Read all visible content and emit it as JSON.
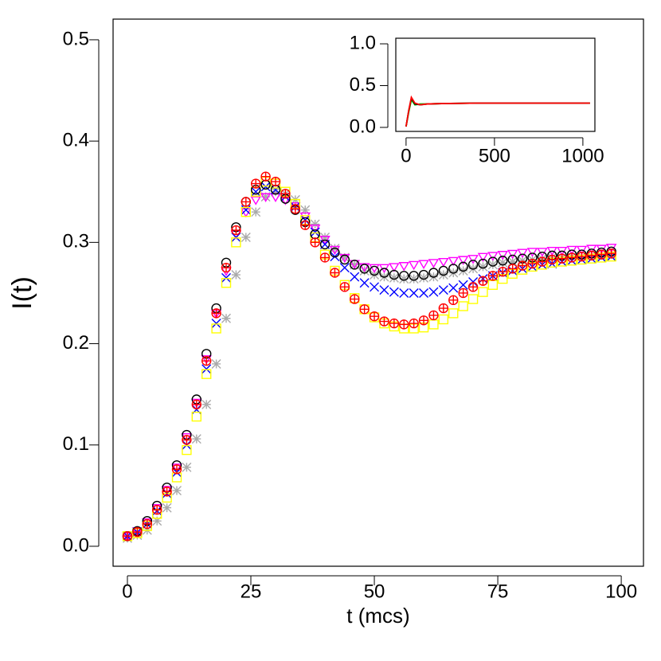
{
  "chart_data": [
    {
      "type": "scatter",
      "y_label": "I(t)",
      "x_label": "t (mcs)",
      "xlim": [
        -2.9,
        104.5
      ],
      "ylim": [
        -0.0197,
        0.5204
      ],
      "xticks": [
        0,
        25,
        50,
        75,
        100
      ],
      "yticks": [
        {
          "value": 0,
          "label": "0.0"
        },
        0.1,
        0.2,
        0.3,
        0.4,
        0.5
      ],
      "x": [
        0,
        2,
        4,
        6,
        8,
        10,
        12,
        14,
        16,
        18,
        20,
        22,
        24,
        26,
        28,
        30,
        32,
        34,
        36,
        38,
        40,
        42,
        44,
        46,
        48,
        50,
        52,
        54,
        56,
        58,
        60,
        62,
        64,
        66,
        68,
        70,
        72,
        74,
        76,
        78,
        80,
        82,
        84,
        86,
        88,
        90,
        92,
        94,
        96,
        98
      ],
      "series": [
        {
          "color": "#aaaaaa",
          "marker": "asterisk",
          "values": [
            0.008,
            0.011,
            0.016,
            0.025,
            0.038,
            0.055,
            0.078,
            0.106,
            0.14,
            0.18,
            0.225,
            0.268,
            0.305,
            0.33,
            0.345,
            0.35,
            0.348,
            0.342,
            0.332,
            0.318,
            0.305,
            0.294,
            0.285,
            0.278,
            0.272,
            0.268,
            0.266,
            0.265,
            0.264,
            0.264,
            0.265,
            0.266,
            0.268,
            0.27,
            0.272,
            0.274,
            0.276,
            0.278,
            0.28,
            0.281,
            0.282,
            0.283,
            0.284,
            0.285,
            0.285,
            0.286,
            0.286,
            0.287,
            0.287,
            0.288
          ]
        },
        {
          "color": "#ff00ff",
          "marker": "triangle-down",
          "values": [
            0.01,
            0.015,
            0.024,
            0.038,
            0.056,
            0.078,
            0.108,
            0.142,
            0.185,
            0.23,
            0.272,
            0.308,
            0.33,
            0.342,
            0.345,
            0.345,
            0.342,
            0.336,
            0.326,
            0.314,
            0.303,
            0.293,
            0.285,
            0.279,
            0.276,
            0.275,
            0.275,
            0.276,
            0.277,
            0.278,
            0.279,
            0.28,
            0.281,
            0.282,
            0.283,
            0.284,
            0.286,
            0.287,
            0.288,
            0.289,
            0.29,
            0.291,
            0.291,
            0.292,
            0.292,
            0.293,
            0.293,
            0.294,
            0.294,
            0.295
          ]
        },
        {
          "color": "#0000ff",
          "marker": "cross",
          "values": [
            0.01,
            0.014,
            0.022,
            0.035,
            0.052,
            0.073,
            0.1,
            0.135,
            0.175,
            0.22,
            0.265,
            0.305,
            0.332,
            0.35,
            0.355,
            0.352,
            0.345,
            0.335,
            0.322,
            0.31,
            0.298,
            0.286,
            0.275,
            0.266,
            0.26,
            0.256,
            0.253,
            0.251,
            0.25,
            0.25,
            0.25,
            0.251,
            0.253,
            0.255,
            0.258,
            0.261,
            0.264,
            0.267,
            0.27,
            0.272,
            0.274,
            0.276,
            0.278,
            0.279,
            0.281,
            0.282,
            0.283,
            0.284,
            0.285,
            0.286
          ]
        },
        {
          "color": "#ffff00",
          "marker": "square",
          "values": [
            0.01,
            0.013,
            0.02,
            0.032,
            0.048,
            0.068,
            0.095,
            0.128,
            0.17,
            0.215,
            0.26,
            0.3,
            0.33,
            0.35,
            0.36,
            0.358,
            0.35,
            0.338,
            0.322,
            0.305,
            0.288,
            0.272,
            0.258,
            0.245,
            0.234,
            0.226,
            0.22,
            0.217,
            0.215,
            0.215,
            0.216,
            0.219,
            0.224,
            0.23,
            0.237,
            0.244,
            0.251,
            0.258,
            0.264,
            0.269,
            0.273,
            0.276,
            0.278,
            0.28,
            0.281,
            0.282,
            0.283,
            0.284,
            0.285,
            0.286
          ]
        },
        {
          "color": "#000000",
          "marker": "circle",
          "values": [
            0.01,
            0.015,
            0.025,
            0.04,
            0.058,
            0.08,
            0.11,
            0.145,
            0.19,
            0.235,
            0.28,
            0.315,
            0.34,
            0.352,
            0.357,
            0.352,
            0.343,
            0.332,
            0.32,
            0.308,
            0.298,
            0.29,
            0.283,
            0.278,
            0.274,
            0.272,
            0.27,
            0.268,
            0.267,
            0.267,
            0.268,
            0.27,
            0.272,
            0.274,
            0.276,
            0.278,
            0.279,
            0.281,
            0.282,
            0.283,
            0.284,
            0.285,
            0.286,
            0.287,
            0.287,
            0.288,
            0.288,
            0.289,
            0.29,
            0.291
          ]
        },
        {
          "color": "#ff0000",
          "marker": "circle-plus",
          "values": [
            0.01,
            0.014,
            0.022,
            0.036,
            0.054,
            0.076,
            0.105,
            0.14,
            0.183,
            0.23,
            0.275,
            0.312,
            0.34,
            0.358,
            0.365,
            0.36,
            0.348,
            0.333,
            0.317,
            0.3,
            0.285,
            0.27,
            0.256,
            0.244,
            0.234,
            0.227,
            0.222,
            0.22,
            0.219,
            0.22,
            0.223,
            0.228,
            0.235,
            0.243,
            0.25,
            0.256,
            0.262,
            0.267,
            0.271,
            0.274,
            0.277,
            0.279,
            0.281,
            0.283,
            0.284,
            0.285,
            0.286,
            0.287,
            0.288,
            0.289
          ]
        }
      ]
    },
    {
      "type": "line",
      "xlim": [
        -58,
        1068
      ],
      "ylim": [
        -0.048,
        1.067
      ],
      "xticks": [
        0,
        500,
        1000
      ],
      "yticks": [
        {
          "value": 0,
          "label": "0.0"
        },
        0.5,
        {
          "value": 1,
          "label": "1.0"
        }
      ],
      "x": [
        0,
        15,
        30,
        50,
        80,
        120,
        200,
        400,
        600,
        800,
        1000,
        1040
      ],
      "series": [
        {
          "color": "#00cc00",
          "values": [
            0.01,
            0.18,
            0.33,
            0.27,
            0.28,
            0.28,
            0.285,
            0.29,
            0.29,
            0.29,
            0.29,
            0.29
          ]
        },
        {
          "color": "#000000",
          "values": [
            0.01,
            0.2,
            0.35,
            0.28,
            0.27,
            0.28,
            0.285,
            0.29,
            0.29,
            0.29,
            0.29,
            0.29
          ]
        },
        {
          "color": "#ff0000",
          "values": [
            0.01,
            0.2,
            0.36,
            0.29,
            0.27,
            0.28,
            0.285,
            0.29,
            0.29,
            0.29,
            0.29,
            0.29
          ]
        }
      ]
    }
  ]
}
